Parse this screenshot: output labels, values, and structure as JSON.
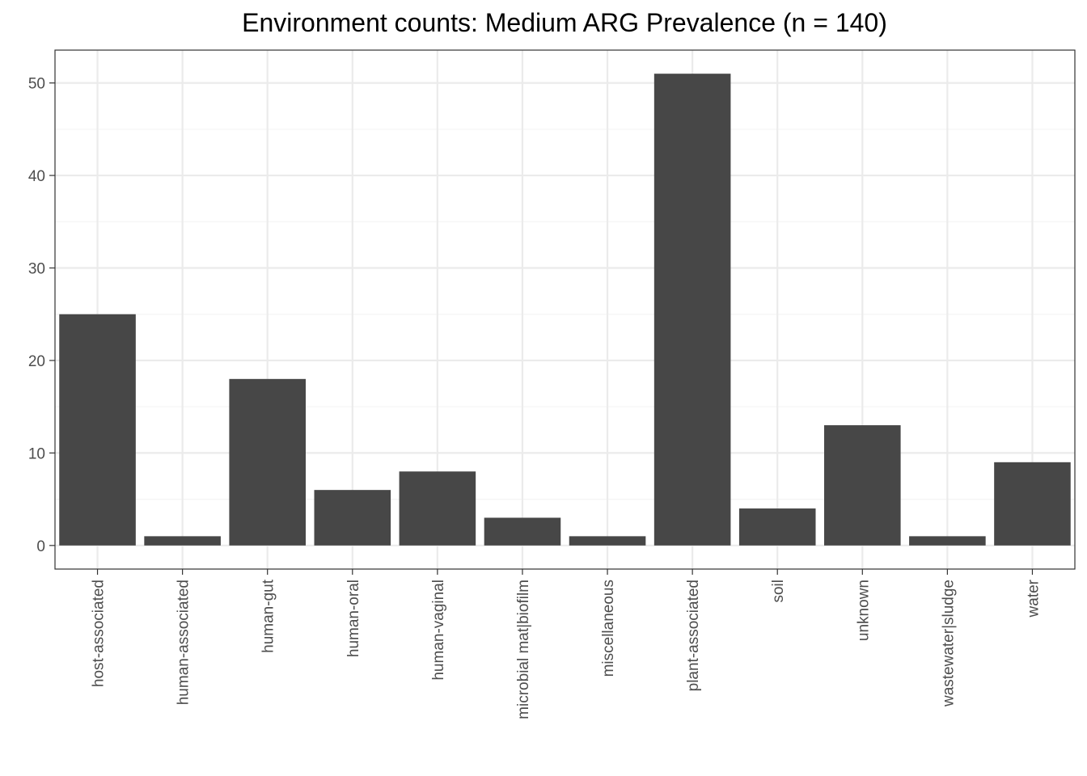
{
  "chart_data": {
    "type": "bar",
    "title": "Environment counts: Medium ARG Prevalence (n = 140)",
    "xlabel": "",
    "ylabel": "",
    "categories": [
      "host-associated",
      "human-associated",
      "human-gut",
      "human-oral",
      "human-vaginal",
      "microbial mat|biofilm",
      "miscellaneous",
      "plant-associated",
      "soil",
      "unknown",
      "wastewater|sludge",
      "water"
    ],
    "values": [
      25,
      1,
      18,
      6,
      8,
      3,
      1,
      51,
      4,
      13,
      1,
      9
    ],
    "ylim": [
      -2.55,
      53.55
    ],
    "yticks": [
      0,
      10,
      20,
      30,
      40,
      50
    ],
    "ytick_labels": [
      "0",
      "10",
      "20",
      "30",
      "40",
      "50"
    ],
    "grid": true,
    "legend": "none",
    "colors": {
      "bar": "#474747",
      "grid_major": "#ebebeb",
      "grid_minor": "#f5f5f5",
      "panel_border": "#333333",
      "tick_text": "#4d4d4d"
    }
  }
}
